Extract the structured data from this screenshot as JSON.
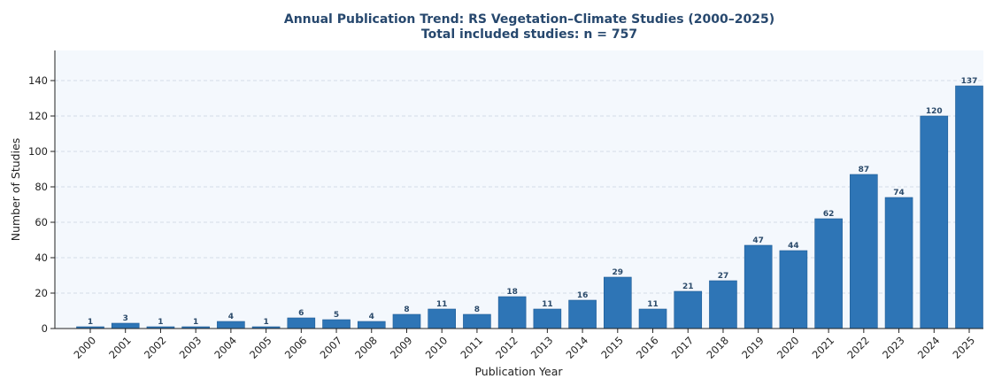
{
  "chart_data": {
    "type": "bar",
    "title": "Annual Publication Trend: RS Vegetation–Climate Studies (2000–2025)",
    "subtitle": "Total included studies: n = 757",
    "xlabel": "Publication Year",
    "ylabel": "Number of Studies",
    "ylim": [
      0,
      157
    ],
    "yticks": [
      0,
      20,
      40,
      60,
      80,
      100,
      120,
      140
    ],
    "grid": true,
    "categories": [
      "2000",
      "2001",
      "2002",
      "2003",
      "2004",
      "2005",
      "2006",
      "2007",
      "2008",
      "2009",
      "2010",
      "2011",
      "2012",
      "2013",
      "2014",
      "2015",
      "2016",
      "2017",
      "2018",
      "2019",
      "2020",
      "2021",
      "2022",
      "2023",
      "2024",
      "2025"
    ],
    "values": [
      1,
      3,
      1,
      1,
      4,
      1,
      6,
      5,
      4,
      8,
      11,
      8,
      18,
      11,
      16,
      29,
      11,
      21,
      27,
      47,
      44,
      62,
      87,
      74,
      120,
      137
    ],
    "colors": {
      "bar": "#2e75b6",
      "bar_edge": "#1f5c96",
      "background": "#f4f8fd",
      "title": "#27486e",
      "bar_label": "#2b4a6a"
    }
  }
}
